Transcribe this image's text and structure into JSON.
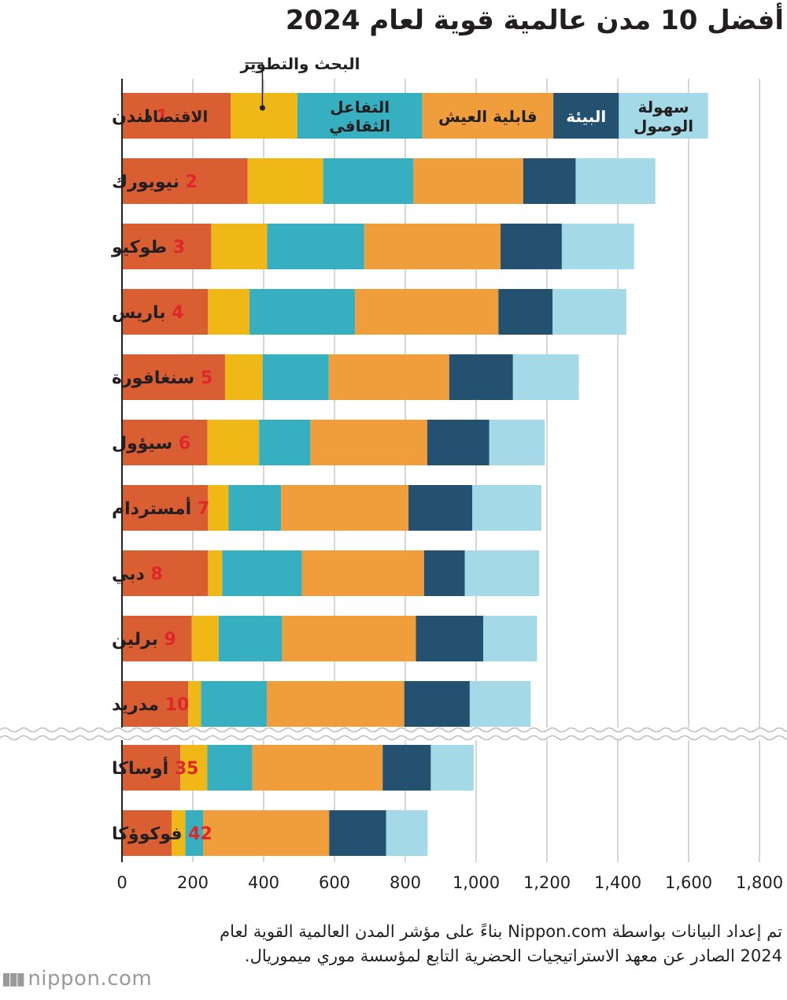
{
  "title": "أفضل 10 مدن عالمية قوية لعام 2024",
  "source_note": "تم إعداد البيانات بواسطة Nippon.com بناءً على مؤشر المدن العالمية القوية لعام 2024 الصادر عن معهد الاستراتيجيات الحضرية التابع لمؤسسة موري ميموريال.",
  "logo": {
    "text": "nippon.com",
    "icon": "nippon-logo-icon"
  },
  "chart_data": {
    "type": "bar",
    "orientation": "horizontal",
    "stacked": true,
    "xlim": [
      0,
      1800
    ],
    "x_ticks": [
      {
        "value": 0,
        "label": "0"
      },
      {
        "value": 200,
        "label": "200"
      },
      {
        "value": 400,
        "label": "400"
      },
      {
        "value": 600,
        "label": "600"
      },
      {
        "value": 800,
        "label": "800"
      },
      {
        "value": 1000,
        "label": "1,000"
      },
      {
        "value": 1200,
        "label": "1,200"
      },
      {
        "value": 1400,
        "label": "1,400"
      },
      {
        "value": 1600,
        "label": "1,600"
      },
      {
        "value": 1800,
        "label": "1,800"
      }
    ],
    "grid": true,
    "axis_break_after_index": 9,
    "categories": [
      {
        "rank": "1",
        "name": "لندن"
      },
      {
        "rank": "2",
        "name": "نيويورك"
      },
      {
        "rank": "3",
        "name": "طوكيو"
      },
      {
        "rank": "4",
        "name": "باريس"
      },
      {
        "rank": "5",
        "name": "سنغافورة"
      },
      {
        "rank": "6",
        "name": "سيؤول"
      },
      {
        "rank": "7",
        "name": "أمستردام"
      },
      {
        "rank": "8",
        "name": "دبي"
      },
      {
        "rank": "9",
        "name": "برلين"
      },
      {
        "rank": "10",
        "name": "مدريد"
      },
      {
        "rank": "35",
        "name": "أوساكا"
      },
      {
        "rank": "42",
        "name": "فوكوؤكا"
      }
    ],
    "series": [
      {
        "name": "الاقتصاد",
        "color": "#d95f32",
        "label_color": "#231f20",
        "values": [
          307,
          355,
          252,
          243,
          291,
          241,
          243,
          243,
          197,
          187,
          165,
          140
        ]
      },
      {
        "name": "البحث والتطوير",
        "color": "#efb817",
        "label_color": "#231f20",
        "values": [
          188,
          213,
          158,
          117,
          106,
          146,
          58,
          40,
          76,
          36,
          76,
          39
        ]
      },
      {
        "name": "التفاعل الثقافي",
        "color": "#36b0c0",
        "label_color": "#231f20",
        "values": [
          353,
          255,
          274,
          298,
          187,
          145,
          148,
          225,
          179,
          186,
          127,
          50
        ]
      },
      {
        "name": "قابلية العيش",
        "color": "#f09e3c",
        "label_color": "#231f20",
        "values": [
          370,
          310,
          385,
          405,
          340,
          330,
          360,
          345,
          378,
          388,
          368,
          356
        ]
      },
      {
        "name": "البيئة",
        "color": "#23516f",
        "label_color": "#ffffff",
        "values": [
          185,
          148,
          173,
          153,
          180,
          175,
          180,
          115,
          190,
          185,
          136,
          161
        ]
      },
      {
        "name": "سهولة الوصول",
        "color": "#a4d9e8",
        "label_color": "#231f20",
        "values": [
          252,
          225,
          204,
          208,
          186,
          157,
          195,
          210,
          152,
          172,
          121,
          117
        ]
      }
    ]
  }
}
